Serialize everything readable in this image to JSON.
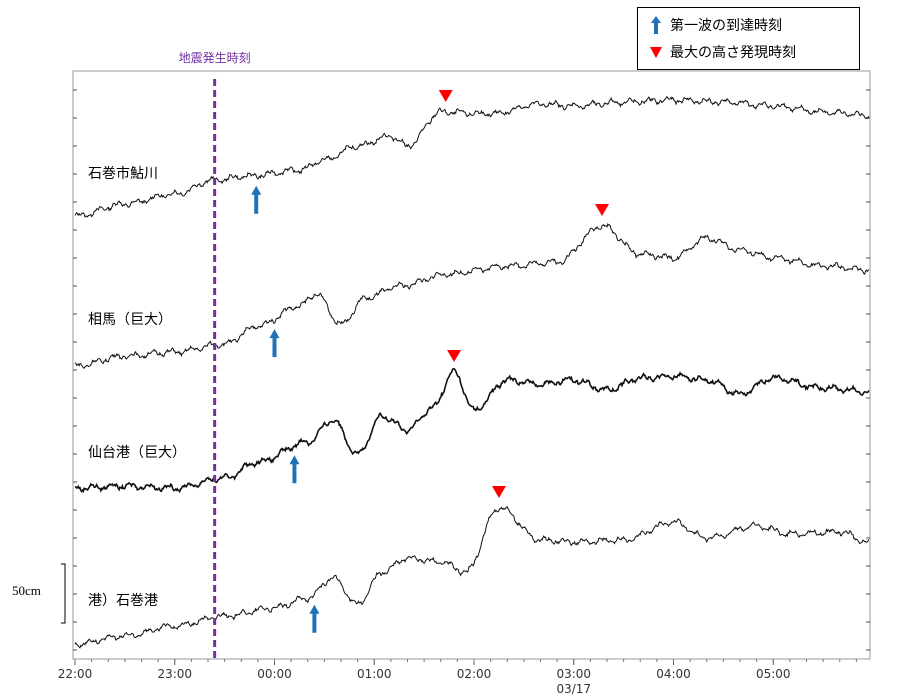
{
  "chart_data": {
    "type": "line",
    "legend": [
      {
        "symbol": "blue-arrow",
        "label": "第一波の到達時刻",
        "color": "#1f72b8"
      },
      {
        "symbol": "red-triangle",
        "label": "最大の高さ発現時刻",
        "color": "#ff0000"
      }
    ],
    "event_line": {
      "label": "地震発生時刻",
      "time": "23:24",
      "color": "#7030a0"
    },
    "x_ticks": [
      "22:00",
      "23:00",
      "00:00",
      "01:00",
      "02:00",
      "03:00",
      "04:00",
      "05:00"
    ],
    "x_sublabel": "03/17",
    "scale_bar_label": "50cm",
    "series": [
      {
        "name": "石巻市鮎川",
        "first_wave": "23:49",
        "max_height": "01:43",
        "points": [
          [
            "22:00",
            0
          ],
          [
            "22:30",
            12
          ],
          [
            "23:00",
            22
          ],
          [
            "23:24",
            36
          ],
          [
            "23:45",
            40
          ],
          [
            "00:15",
            46
          ],
          [
            "00:30",
            56
          ],
          [
            "00:50",
            70
          ],
          [
            "01:10",
            80
          ],
          [
            "01:20",
            70
          ],
          [
            "01:40",
            104
          ],
          [
            "02:10",
            102
          ],
          [
            "02:40",
            112
          ],
          [
            "03:00",
            110
          ],
          [
            "03:30",
            114
          ],
          [
            "04:00",
            116
          ],
          [
            "04:30",
            114
          ],
          [
            "05:00",
            110
          ],
          [
            "05:30",
            104
          ],
          [
            "06:00",
            100
          ]
        ]
      },
      {
        "name": "相馬（巨大）",
        "first_wave": "00:00",
        "max_height": "03:17",
        "points": [
          [
            "22:00",
            0
          ],
          [
            "22:30",
            10
          ],
          [
            "23:00",
            14
          ],
          [
            "23:30",
            22
          ],
          [
            "23:50",
            40
          ],
          [
            "00:15",
            60
          ],
          [
            "00:25",
            72
          ],
          [
            "00:40",
            42
          ],
          [
            "00:55",
            68
          ],
          [
            "01:15",
            80
          ],
          [
            "01:45",
            92
          ],
          [
            "02:20",
            100
          ],
          [
            "02:50",
            104
          ],
          [
            "03:17",
            140
          ],
          [
            "03:40",
            112
          ],
          [
            "04:00",
            108
          ],
          [
            "04:20",
            128
          ],
          [
            "04:40",
            116
          ],
          [
            "05:00",
            108
          ],
          [
            "05:30",
            100
          ],
          [
            "06:00",
            96
          ]
        ]
      },
      {
        "name": "仙台港（巨大）",
        "first_wave": "00:12",
        "max_height": "01:48",
        "points": [
          [
            "22:00",
            10
          ],
          [
            "22:30",
            12
          ],
          [
            "23:00",
            10
          ],
          [
            "23:30",
            20
          ],
          [
            "23:50",
            36
          ],
          [
            "00:20",
            56
          ],
          [
            "00:35",
            78
          ],
          [
            "00:50",
            44
          ],
          [
            "01:05",
            82
          ],
          [
            "01:20",
            68
          ],
          [
            "01:35",
            90
          ],
          [
            "01:48",
            126
          ],
          [
            "02:00",
            88
          ],
          [
            "02:20",
            118
          ],
          [
            "02:40",
            114
          ],
          [
            "03:00",
            118
          ],
          [
            "03:20",
            108
          ],
          [
            "03:40",
            120
          ],
          [
            "04:00",
            122
          ],
          [
            "04:20",
            118
          ],
          [
            "04:40",
            104
          ],
          [
            "05:00",
            120
          ],
          [
            "05:30",
            110
          ],
          [
            "06:00",
            106
          ]
        ]
      },
      {
        "name": "港）石巻港",
        "first_wave": "00:24",
        "max_height": "02:15",
        "points": [
          [
            "22:00",
            0
          ],
          [
            "22:30",
            8
          ],
          [
            "23:00",
            18
          ],
          [
            "23:30",
            28
          ],
          [
            "00:00",
            36
          ],
          [
            "00:20",
            46
          ],
          [
            "00:35",
            66
          ],
          [
            "00:50",
            40
          ],
          [
            "01:05",
            72
          ],
          [
            "01:20",
            86
          ],
          [
            "01:40",
            82
          ],
          [
            "01:55",
            72
          ],
          [
            "02:15",
            136
          ],
          [
            "02:40",
            104
          ],
          [
            "03:00",
            102
          ],
          [
            "03:30",
            104
          ],
          [
            "04:00",
            122
          ],
          [
            "04:20",
            106
          ],
          [
            "04:50",
            118
          ],
          [
            "05:10",
            110
          ],
          [
            "05:40",
            112
          ],
          [
            "06:00",
            100
          ]
        ]
      }
    ]
  }
}
